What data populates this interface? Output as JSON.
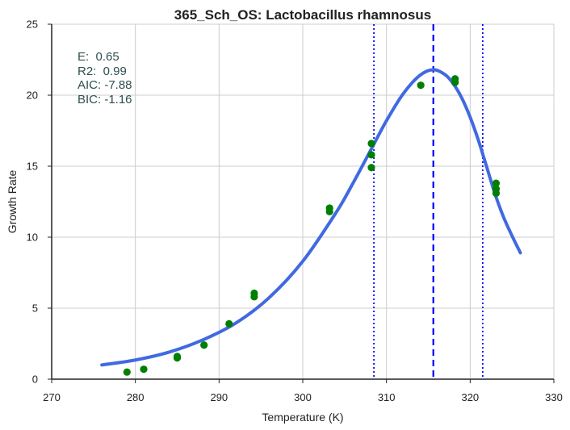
{
  "chart_data": {
    "type": "scatter",
    "title": "365_Sch_OS: Lactobacillus rhamnosus",
    "xlabel": "Temperature (K)",
    "ylabel": "Growth Rate",
    "xlim": [
      270,
      330
    ],
    "ylim": [
      0,
      25
    ],
    "x_ticks": [
      270,
      280,
      290,
      300,
      310,
      320,
      330
    ],
    "y_ticks": [
      0,
      5,
      10,
      15,
      20,
      25
    ],
    "grid": true,
    "annotations": [
      "E:  0.65",
      "R2:  0.99",
      "AIC: -7.88",
      "BIC: -1.16"
    ],
    "series": [
      {
        "kind": "points",
        "color": "#008000",
        "x": [
          279,
          281,
          285,
          285,
          288.2,
          291.2,
          294.2,
          294.2,
          303.2,
          303.2,
          308.2,
          308.2,
          308.2,
          314.1,
          318.2,
          318.2,
          323.1,
          323.1,
          323.1
        ],
        "y": [
          0.5,
          0.7,
          1.5,
          1.6,
          2.4,
          3.9,
          5.8,
          6.05,
          11.8,
          12.05,
          14.9,
          15.8,
          16.6,
          20.7,
          20.9,
          21.15,
          13.1,
          13.4,
          13.8
        ]
      },
      {
        "kind": "line",
        "color": "#4169E1",
        "x": [
          276,
          280,
          284,
          288,
          292,
          296,
          300,
          304,
          306,
          308,
          310,
          312,
          314,
          315.6,
          317,
          318,
          319,
          320,
          321,
          322,
          323,
          324,
          325,
          326
        ],
        "y": [
          1.0,
          1.35,
          1.9,
          2.75,
          3.95,
          5.75,
          8.3,
          11.75,
          13.8,
          16.0,
          18.2,
          20.1,
          21.4,
          21.8,
          21.45,
          20.8,
          19.8,
          18.45,
          16.8,
          14.9,
          13.0,
          11.4,
          10.1,
          8.9
        ]
      }
    ],
    "vlines": [
      {
        "x": 315.6,
        "style": "dashed",
        "color": "#0000ff"
      },
      {
        "x": 308.5,
        "style": "dotted",
        "color": "#0000ff"
      },
      {
        "x": 321.5,
        "style": "dotted",
        "color": "#0000ff"
      }
    ]
  }
}
